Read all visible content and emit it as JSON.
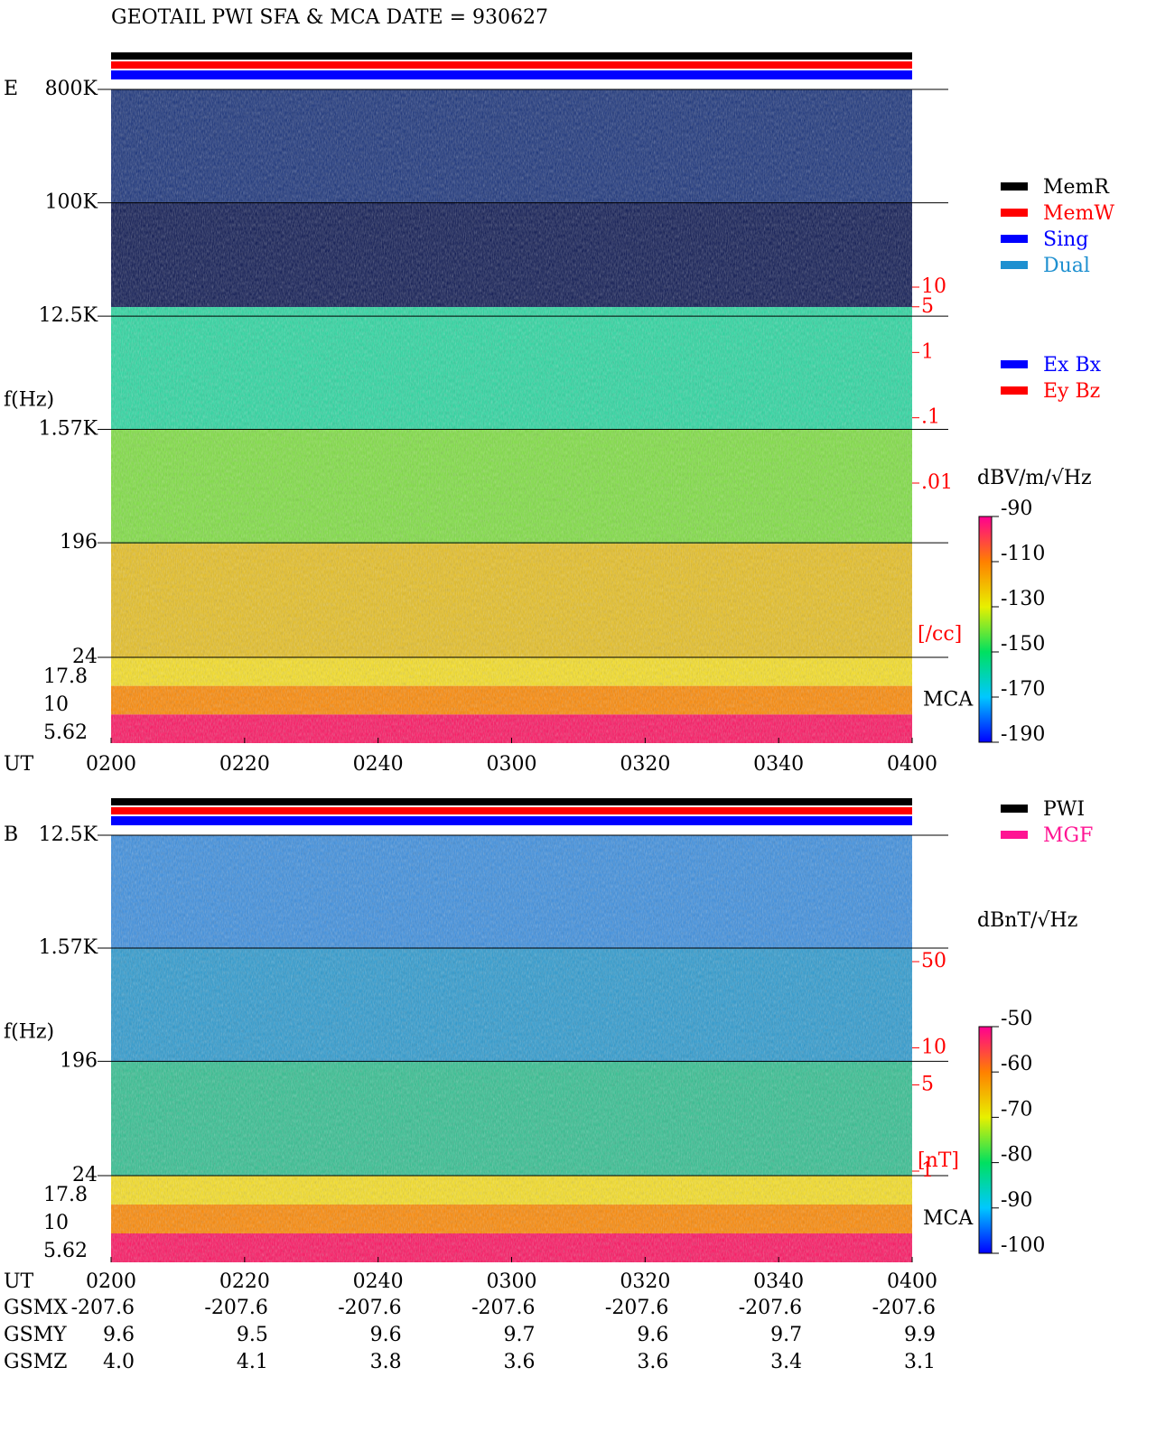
{
  "title": "GEOTAIL  PWI SFA & MCA   DATE = 930627",
  "panels": [
    {
      "label": "E",
      "y_label": "f(Hz)",
      "freq_lim": [
        24,
        800000
      ],
      "freq_ticks": [
        {
          "value": 800000,
          "label": "800K"
        },
        {
          "value": 100000,
          "label": "100K"
        },
        {
          "value": 12500,
          "label": "12.5K"
        },
        {
          "value": 1570,
          "label": "1.57K"
        },
        196,
        24
      ],
      "mca_ticks": [
        "17.8",
        "10",
        "5.62"
      ],
      "mca_label": "MCA",
      "time_label": "UT",
      "time_ticks": [
        "0200",
        "0220",
        "0240",
        "0300",
        "0320",
        "0340",
        "0400"
      ],
      "legend": [
        {
          "name": "MemR",
          "color": "#000000"
        },
        {
          "name": "MemW",
          "color": "#ff0000"
        },
        {
          "name": "Sing",
          "color": "#0000ff"
        },
        {
          "name": "Dual",
          "color": "#1e90d0"
        }
      ],
      "legend2": [
        {
          "name": "Ex Bx",
          "color": "#0000ff"
        },
        {
          "name": "Ey Bz",
          "color": "#ff0000"
        }
      ],
      "right_lim": [
        0.01,
        10
      ],
      "right_ticks": [
        10,
        5,
        1,
        {
          "value": 0.1,
          "label": ".1"
        },
        {
          "value": 0.01,
          "label": ".01"
        }
      ],
      "right_unit": "[/cc]",
      "colorbar_unit": "dBV/m/√Hz",
      "colorbar_lim": [
        -190,
        -90
      ],
      "colorbar_ticks": [
        -90,
        -110,
        -130,
        -150,
        -170,
        -190
      ]
    },
    {
      "label": "B",
      "y_label": "f(Hz)",
      "freq_lim": [
        24,
        12500
      ],
      "freq_ticks": [
        {
          "value": 12500,
          "label": "12.5K"
        },
        {
          "value": 1570,
          "label": "1.57K"
        },
        196,
        24
      ],
      "mca_ticks": [
        "17.8",
        "10",
        "5.62"
      ],
      "mca_label": "MCA",
      "time_label": "UT",
      "time_ticks": [
        "0200",
        "0220",
        "0240",
        "0300",
        "0320",
        "0340",
        "0400"
      ],
      "legend": [
        {
          "name": "PWI",
          "color": "#000000"
        },
        {
          "name": "MGF",
          "color": "#ff1493"
        }
      ],
      "right_lim": [
        1,
        50
      ],
      "right_ticks": [
        50,
        10,
        5,
        1
      ],
      "right_unit": "[nT]",
      "colorbar_unit": "dBnT/√Hz",
      "colorbar_lim": [
        -100,
        -50
      ],
      "colorbar_ticks": [
        -50,
        -60,
        -70,
        -80,
        -90,
        -100
      ]
    }
  ],
  "ephemeris": {
    "rows": [
      [
        "GSMX",
        "-207.6",
        "-207.6",
        "-207.6",
        "-207.6",
        "-207.6",
        "-207.6",
        "-207.6"
      ],
      [
        "GSMY",
        "9.6",
        "9.5",
        "9.6",
        "9.7",
        "9.6",
        "9.7",
        "9.9"
      ],
      [
        "GSMZ",
        "4.0",
        "4.1",
        "3.8",
        "3.6",
        "3.6",
        "3.4",
        "3.1"
      ]
    ]
  }
}
